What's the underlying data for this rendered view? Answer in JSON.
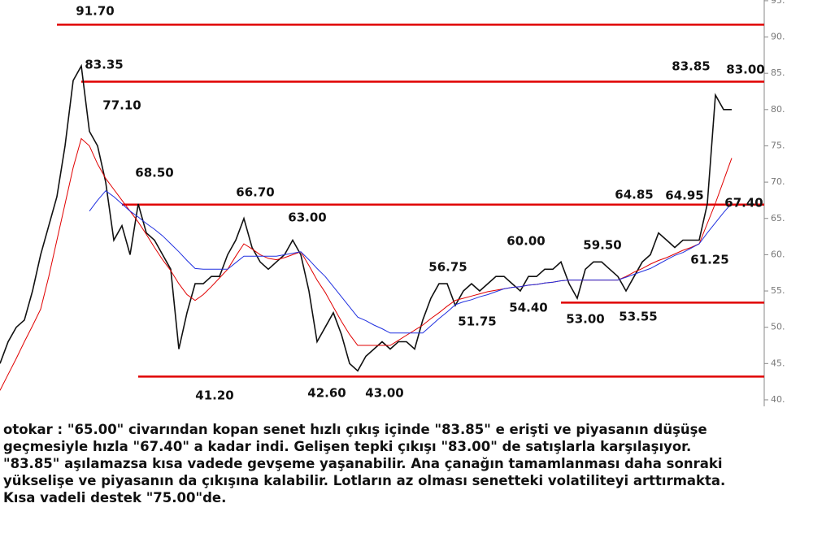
{
  "chart_data": {
    "type": "line",
    "ylim": [
      39.1,
      95.1
    ],
    "yticks": [
      {
        "value": 40,
        "label": "40."
      },
      {
        "value": 45,
        "label": "45."
      },
      {
        "value": 50,
        "label": "50."
      },
      {
        "value": 55,
        "label": "55."
      },
      {
        "value": 60,
        "label": "60."
      },
      {
        "value": 65,
        "label": "65."
      },
      {
        "value": 70,
        "label": "70."
      },
      {
        "value": 75,
        "label": "75."
      },
      {
        "value": 80,
        "label": "80."
      },
      {
        "value": 85,
        "label": "85."
      },
      {
        "value": 90,
        "label": "90."
      },
      {
        "value": 95,
        "label": "95."
      }
    ],
    "series": [
      {
        "color": "#111111",
        "values": [
          45,
          48,
          50,
          51,
          55,
          60,
          64,
          68,
          75,
          84,
          86,
          77,
          75,
          70,
          62,
          64,
          60,
          67,
          63,
          62,
          60,
          58,
          47,
          52,
          56,
          56,
          57,
          57,
          60,
          62,
          65,
          61,
          59,
          58,
          59,
          60,
          62,
          60,
          55,
          48,
          50,
          52,
          49,
          45,
          44,
          46,
          47,
          48,
          47,
          48,
          48,
          47,
          51,
          54,
          56,
          56,
          53,
          55,
          56,
          55,
          56,
          57,
          57,
          56,
          55,
          57,
          57,
          58,
          58,
          59,
          56,
          54,
          58,
          59,
          59,
          58,
          57,
          55,
          57,
          59,
          60,
          63,
          62,
          61,
          62,
          62,
          62,
          67,
          82,
          80,
          80
        ]
      },
      {
        "color": "#e00000",
        "values": [
          41.3,
          43.5,
          45.7,
          48,
          50.2,
          52.5,
          57,
          62,
          67,
          72,
          76,
          75,
          72.5,
          70.5,
          69,
          67.5,
          66,
          64.5,
          62.8,
          61,
          59.3,
          57.8,
          56,
          54.5,
          53.7,
          54.5,
          55.6,
          56.8,
          58,
          59.8,
          61.5,
          60.8,
          60,
          59.5,
          59.3,
          59.6,
          60,
          60.4,
          58.5,
          56.5,
          54.8,
          52.8,
          50.8,
          49,
          47.5,
          47.5,
          47.5,
          47.5,
          47.5,
          48.2,
          48.9,
          49.6,
          50.3,
          51.2,
          52,
          52.9,
          53.7,
          54,
          54.3,
          54.6,
          54.9,
          55.1,
          55.3,
          55.5,
          55.6,
          55.8,
          55.9,
          56.1,
          56.2,
          56.4,
          56.5,
          56.5,
          56.5,
          56.5,
          56.5,
          56.5,
          56.5,
          57,
          57.6,
          58.1,
          58.7,
          59.2,
          59.6,
          60.1,
          60.6,
          61,
          61.5,
          64.3,
          67.1,
          70.2,
          73.3
        ]
      },
      {
        "color": "#2030e0",
        "values": [
          null,
          null,
          null,
          null,
          null,
          null,
          null,
          null,
          null,
          null,
          null,
          66,
          67.5,
          68.8,
          68,
          67,
          66,
          65.2,
          64.3,
          63.5,
          62.6,
          61.5,
          60.4,
          59.2,
          58.1,
          58,
          58,
          58,
          58,
          58.9,
          59.8,
          59.8,
          59.8,
          59.8,
          59.8,
          60,
          60.2,
          60.4,
          59.3,
          58.1,
          57,
          55.6,
          54.2,
          52.8,
          51.4,
          50.9,
          50.3,
          49.8,
          49.2,
          49.2,
          49.2,
          49.2,
          49.2,
          50.2,
          51.2,
          52.1,
          53.1,
          53.5,
          53.8,
          54.2,
          54.5,
          54.9,
          55.3,
          55.5,
          55.6,
          55.8,
          55.9,
          56.1,
          56.2,
          56.4,
          56.5,
          56.5,
          56.5,
          56.5,
          56.5,
          56.5,
          56.5,
          56.9,
          57.3,
          57.7,
          58.1,
          58.7,
          59.3,
          59.9,
          60.3,
          60.9,
          61.5,
          63,
          64.4,
          65.8,
          67.1
        ]
      }
    ],
    "hlines": [
      91.7,
      83.85,
      66.9,
      53.4,
      43.2
    ],
    "hline_color": "#e00000",
    "annotations": [
      "91.70",
      "83.35",
      "77.10",
      "68.50",
      "66.70",
      "63.00",
      "56.75",
      "60.00",
      "59.50",
      "51.75",
      "54.40",
      "53.00",
      "53.55",
      "41.20",
      "42.60",
      "43.00",
      "64.85",
      "64.95",
      "83.85",
      "83.00",
      "67.40",
      "61.25"
    ]
  },
  "commentary": [
    "otokar : \"65.00\" civarından kopan senet hızlı çıkış içinde \"83.85\" e erişti ve piyasanın düşüşe",
    "geçmesiyle hızla \"67.40\" a kadar indi. Gelişen tepki çıkışı \"83.00\" de satışlarla karşılaşıyor.",
    "\"83.85\" aşılamazsa kısa vadede gevşeme yaşanabilir. Ana çanağın tamamlanması daha sonraki",
    "yükselişe ve piyasanın da çıkışına kalabilir. Lotların az olması senetteki volatiliteyi arttırmakta.",
    "Kısa vadeli destek \"75.00\"de."
  ]
}
